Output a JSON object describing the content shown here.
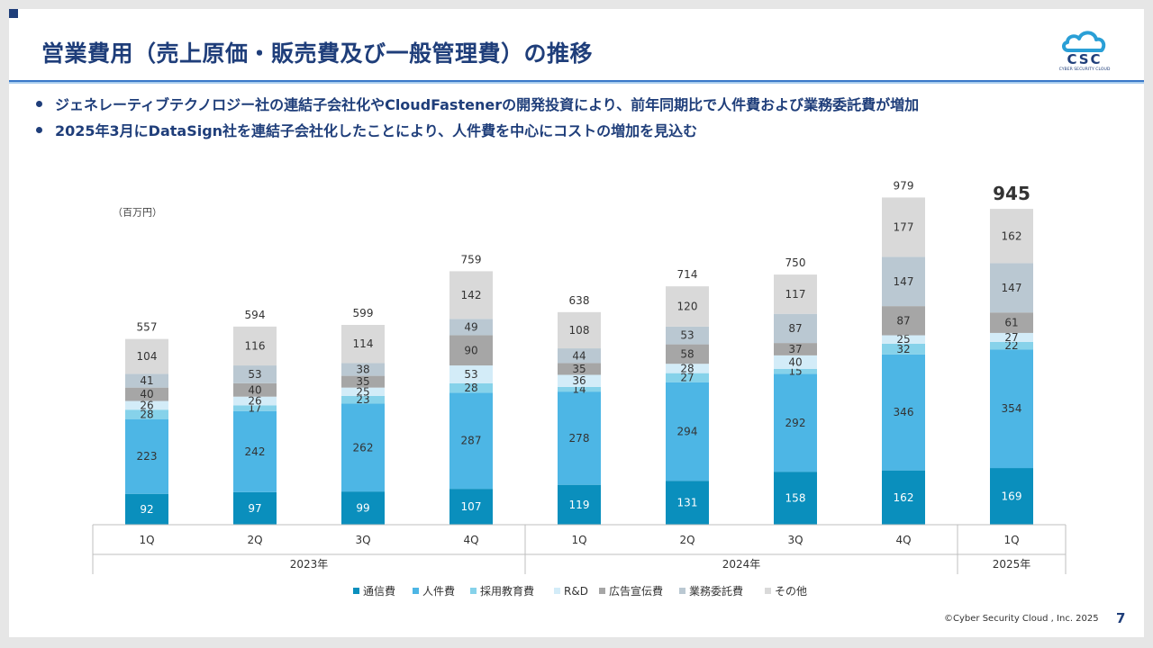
{
  "slide": {
    "title": "営業費用（売上原価・販売費及び一般管理費）の推移",
    "bullets": [
      "ジェネレーティブテクノロジー社の連結子会社化やCloudFastenerの開発投資により、前年同期比で人件費および業務委託費が増加",
      "2025年3月にDataSign社を連結子会社化したことにより、人件費を中心にコストの増加を見込む"
    ],
    "logo": {
      "text": "CSC",
      "subtext": "CYBER SECURITY CLOUD",
      "icon": "cloud-icon"
    },
    "footer": "©Cyber Security Cloud , Inc. 2025",
    "page_number": "7"
  },
  "chart_data": {
    "type": "bar",
    "stacked": true,
    "unit_label": "（百万円）",
    "categories": [
      "1Q",
      "2Q",
      "3Q",
      "4Q",
      "1Q",
      "2Q",
      "3Q",
      "4Q",
      "1Q"
    ],
    "groups": [
      {
        "label": "2023年",
        "count": 4
      },
      {
        "label": "2024年",
        "count": 4
      },
      {
        "label": "2025年",
        "count": 1
      }
    ],
    "series": [
      {
        "name": "通信費",
        "color": "#0a8fbd",
        "values": [
          92,
          97,
          99,
          107,
          119,
          131,
          158,
          162,
          169
        ]
      },
      {
        "name": "人件費",
        "color": "#4db6e5",
        "values": [
          223,
          242,
          262,
          287,
          278,
          294,
          292,
          346,
          354
        ]
      },
      {
        "name": "採用教育費",
        "color": "#86d2ea",
        "values": [
          28,
          17,
          23,
          28,
          14,
          27,
          15,
          32,
          22
        ]
      },
      {
        "name": "R&D",
        "color": "#d3ecf8",
        "values": [
          26,
          26,
          25,
          53,
          36,
          28,
          40,
          25,
          27
        ]
      },
      {
        "name": "広告宣伝費",
        "color": "#a6a6a6",
        "values": [
          40,
          40,
          35,
          90,
          35,
          58,
          37,
          87,
          61
        ]
      },
      {
        "name": "業務委託費",
        "color": "#bac8d2",
        "values": [
          41,
          53,
          38,
          49,
          44,
          53,
          87,
          147,
          147
        ]
      },
      {
        "name": "その他",
        "color": "#d9d9d9",
        "values": [
          104,
          116,
          114,
          142,
          108,
          120,
          117,
          177,
          162
        ]
      }
    ],
    "totals": [
      557,
      594,
      599,
      759,
      638,
      714,
      750,
      979,
      945
    ],
    "highlight_index": 8,
    "ylim": [
      0,
      1000
    ]
  }
}
